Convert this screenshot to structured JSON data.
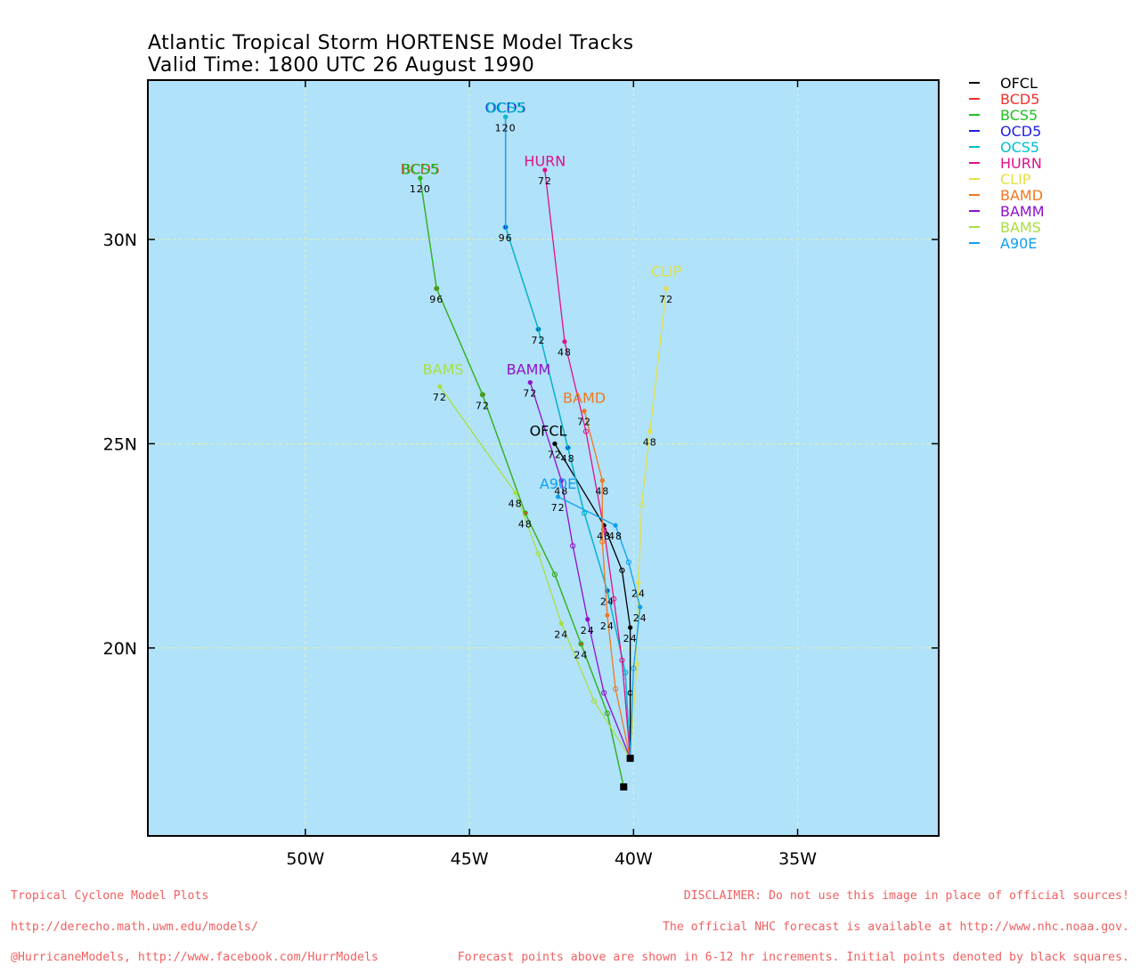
{
  "title_line1": "Atlantic Tropical Storm HORTENSE Model Tracks",
  "title_line2": "Valid Time: 1800 UTC 26 August 1990",
  "colors": {
    "ocean": "#b0e2fa",
    "grid": "#e8f0a0",
    "OFCL": "#000000",
    "BCD5": "#f03030",
    "BCS5": "#20c020",
    "OCD5": "#2020e0",
    "OCS5": "#00c0c8",
    "HURN": "#e0108a",
    "CLIP": "#e6e040",
    "BAMD": "#f07820",
    "BAMM": "#9010c8",
    "BAMS": "#a8e040",
    "A90E": "#10a0f0"
  },
  "axes": {
    "x_ticks": [
      "50W",
      "45W",
      "40W",
      "35W"
    ],
    "y_ticks": [
      "30N",
      "25N",
      "20N"
    ]
  },
  "legend": [
    "OFCL",
    "BCD5",
    "BCS5",
    "OCD5",
    "OCS5",
    "HURN",
    "CLIP",
    "BAMD",
    "BAMM",
    "BAMS",
    "A90E"
  ],
  "chart_data": {
    "type": "map-tracks",
    "lon_range": [
      -54.8,
      -30.7
    ],
    "lat_range": [
      15.4,
      33.9
    ],
    "initial_points": [
      {
        "lon": -40.1,
        "lat": 17.3
      },
      {
        "lon": -40.3,
        "lat": 16.6
      }
    ],
    "tracks": [
      {
        "model": "OFCL",
        "label": "OFCL",
        "label_lon": -42.6,
        "label_lat": 25.2,
        "points": [
          [
            -40.1,
            17.3
          ],
          [
            -40.1,
            18.9
          ],
          [
            -40.1,
            20.5
          ],
          [
            -40.35,
            21.9
          ],
          [
            -40.9,
            23.0
          ],
          [
            -42.4,
            25.0
          ]
        ],
        "tau_labels": [
          {
            "text": "24",
            "lon": -40.1,
            "lat": 20.5
          },
          {
            "text": "48",
            "lon": -40.9,
            "lat": 23.0
          },
          {
            "text": "72",
            "lon": -42.4,
            "lat": 25.0
          }
        ]
      },
      {
        "model": "BCD5",
        "label": "BCD5",
        "label_lon": -46.5,
        "label_lat": 31.6,
        "points": [
          [
            -40.3,
            16.6
          ],
          [
            -40.8,
            18.4
          ],
          [
            -41.6,
            20.1
          ],
          [
            -42.4,
            21.8
          ],
          [
            -43.3,
            23.3
          ],
          [
            -44.6,
            26.2
          ],
          [
            -46.0,
            28.8
          ],
          [
            -46.5,
            31.5
          ]
        ],
        "tau_labels": [
          {
            "text": "24",
            "lon": -41.6,
            "lat": 20.1
          },
          {
            "text": "48",
            "lon": -43.3,
            "lat": 23.3
          },
          {
            "text": "72",
            "lon": -44.6,
            "lat": 26.2
          },
          {
            "text": "96",
            "lon": -46.0,
            "lat": 28.8
          },
          {
            "text": "120",
            "lon": -46.5,
            "lat": 31.5
          }
        ]
      },
      {
        "model": "BCS5",
        "label": "BCS5",
        "label_lon": -46.5,
        "label_lat": 31.6,
        "points": [
          [
            -40.3,
            16.6
          ],
          [
            -40.8,
            18.4
          ],
          [
            -41.6,
            20.1
          ],
          [
            -42.4,
            21.8
          ],
          [
            -43.3,
            23.3
          ],
          [
            -44.6,
            26.2
          ],
          [
            -46.0,
            28.8
          ],
          [
            -46.5,
            31.5
          ]
        ],
        "tau_labels": []
      },
      {
        "model": "OCD5",
        "label": "OCD5",
        "label_lon": -43.9,
        "label_lat": 33.1,
        "points": [
          [
            -40.1,
            17.3
          ],
          [
            -40.25,
            19.4
          ],
          [
            -40.8,
            21.4
          ],
          [
            -41.5,
            23.3
          ],
          [
            -42.0,
            24.9
          ],
          [
            -42.9,
            27.8
          ],
          [
            -43.9,
            30.3
          ],
          [
            -43.9,
            33.0
          ]
        ],
        "tau_labels": [
          {
            "text": "24",
            "lon": -40.8,
            "lat": 21.4
          },
          {
            "text": "48",
            "lon": -42.0,
            "lat": 24.9
          },
          {
            "text": "72",
            "lon": -42.9,
            "lat": 27.8
          },
          {
            "text": "96",
            "lon": -43.9,
            "lat": 30.3
          },
          {
            "text": "120",
            "lon": -43.9,
            "lat": 33.0
          }
        ]
      },
      {
        "model": "OCS5",
        "label": "OCS5",
        "label_lon": -43.9,
        "label_lat": 33.1,
        "points": [
          [
            -40.1,
            17.3
          ],
          [
            -40.25,
            19.4
          ],
          [
            -40.8,
            21.4
          ],
          [
            -41.5,
            23.3
          ],
          [
            -42.0,
            24.9
          ],
          [
            -42.9,
            27.8
          ],
          [
            -43.9,
            30.3
          ],
          [
            -43.9,
            33.0
          ]
        ],
        "tau_labels": []
      },
      {
        "model": "HURN",
        "label": "HURN",
        "label_lon": -42.7,
        "label_lat": 31.8,
        "points": [
          [
            -40.1,
            17.3
          ],
          [
            -40.35,
            19.7
          ],
          [
            -40.6,
            21.2
          ],
          [
            -40.9,
            22.9
          ],
          [
            -41.45,
            25.3
          ],
          [
            -42.1,
            27.5
          ],
          [
            -42.7,
            31.7
          ]
        ],
        "tau_labels": [
          {
            "text": "48",
            "lon": -42.1,
            "lat": 27.5
          },
          {
            "text": "72",
            "lon": -42.7,
            "lat": 31.7
          }
        ]
      },
      {
        "model": "CLIP",
        "label": "CLIP",
        "label_lon": -39.0,
        "label_lat": 29.1,
        "points": [
          [
            -40.1,
            17.3
          ],
          [
            -39.9,
            19.6
          ],
          [
            -39.85,
            21.6
          ],
          [
            -39.75,
            23.5
          ],
          [
            -39.5,
            25.3
          ],
          [
            -39.0,
            28.8
          ]
        ],
        "tau_labels": [
          {
            "text": "24",
            "lon": -39.85,
            "lat": 21.6
          },
          {
            "text": "48",
            "lon": -39.5,
            "lat": 25.3
          },
          {
            "text": "72",
            "lon": -39.0,
            "lat": 28.8
          }
        ]
      },
      {
        "model": "BAMD",
        "label": "BAMD",
        "label_lon": -41.5,
        "label_lat": 26.0,
        "points": [
          [
            -40.1,
            17.3
          ],
          [
            -40.55,
            19.0
          ],
          [
            -40.8,
            20.8
          ],
          [
            -40.95,
            22.6
          ],
          [
            -40.95,
            24.1
          ],
          [
            -41.5,
            25.8
          ]
        ],
        "tau_labels": [
          {
            "text": "24",
            "lon": -40.8,
            "lat": 20.8
          },
          {
            "text": "48",
            "lon": -40.95,
            "lat": 24.1
          },
          {
            "text": "72",
            "lon": -41.5,
            "lat": 25.8
          }
        ]
      },
      {
        "model": "BAMM",
        "label": "BAMM",
        "label_lon": -43.2,
        "label_lat": 26.7,
        "points": [
          [
            -40.1,
            17.3
          ],
          [
            -40.9,
            18.9
          ],
          [
            -41.4,
            20.7
          ],
          [
            -41.85,
            22.5
          ],
          [
            -42.2,
            24.1
          ],
          [
            -43.15,
            26.5
          ]
        ],
        "tau_labels": [
          {
            "text": "24",
            "lon": -41.4,
            "lat": 20.7
          },
          {
            "text": "48",
            "lon": -42.2,
            "lat": 24.1
          },
          {
            "text": "72",
            "lon": -43.15,
            "lat": 26.5
          }
        ]
      },
      {
        "model": "BAMS",
        "label": "BAMS",
        "label_lon": -45.8,
        "label_lat": 26.7,
        "points": [
          [
            -40.1,
            17.3
          ],
          [
            -41.2,
            18.7
          ],
          [
            -42.2,
            20.6
          ],
          [
            -42.9,
            22.3
          ],
          [
            -43.6,
            23.8
          ],
          [
            -45.9,
            26.4
          ]
        ],
        "tau_labels": [
          {
            "text": "24",
            "lon": -42.2,
            "lat": 20.6
          },
          {
            "text": "48",
            "lon": -43.6,
            "lat": 23.8
          },
          {
            "text": "72",
            "lon": -45.9,
            "lat": 26.4
          }
        ]
      },
      {
        "model": "A90E",
        "label": "A90E",
        "label_lon": -42.3,
        "label_lat": 23.9,
        "points": [
          [
            -40.1,
            17.3
          ],
          [
            -40.0,
            19.5
          ],
          [
            -39.8,
            21.0
          ],
          [
            -40.15,
            22.1
          ],
          [
            -40.55,
            23.0
          ],
          [
            -42.3,
            23.7
          ]
        ],
        "tau_labels": [
          {
            "text": "24",
            "lon": -39.8,
            "lat": 21.0
          },
          {
            "text": "48",
            "lon": -40.55,
            "lat": 23.0
          },
          {
            "text": "72",
            "lon": -42.3,
            "lat": 23.7
          }
        ]
      }
    ]
  },
  "footer": {
    "left_lines": [
      "Tropical Cyclone Model Plots",
      "http://derecho.math.uwm.edu/models/",
      "@HurricaneModels, http://www.facebook.com/HurrModels"
    ],
    "right_lines": [
      "DISCLAIMER: Do not use this image in place of official sources!",
      "The official NHC forecast is available at http://www.nhc.noaa.gov.",
      "Forecast points above are shown in 6-12 hr increments. Initial points denoted by black squares."
    ]
  }
}
